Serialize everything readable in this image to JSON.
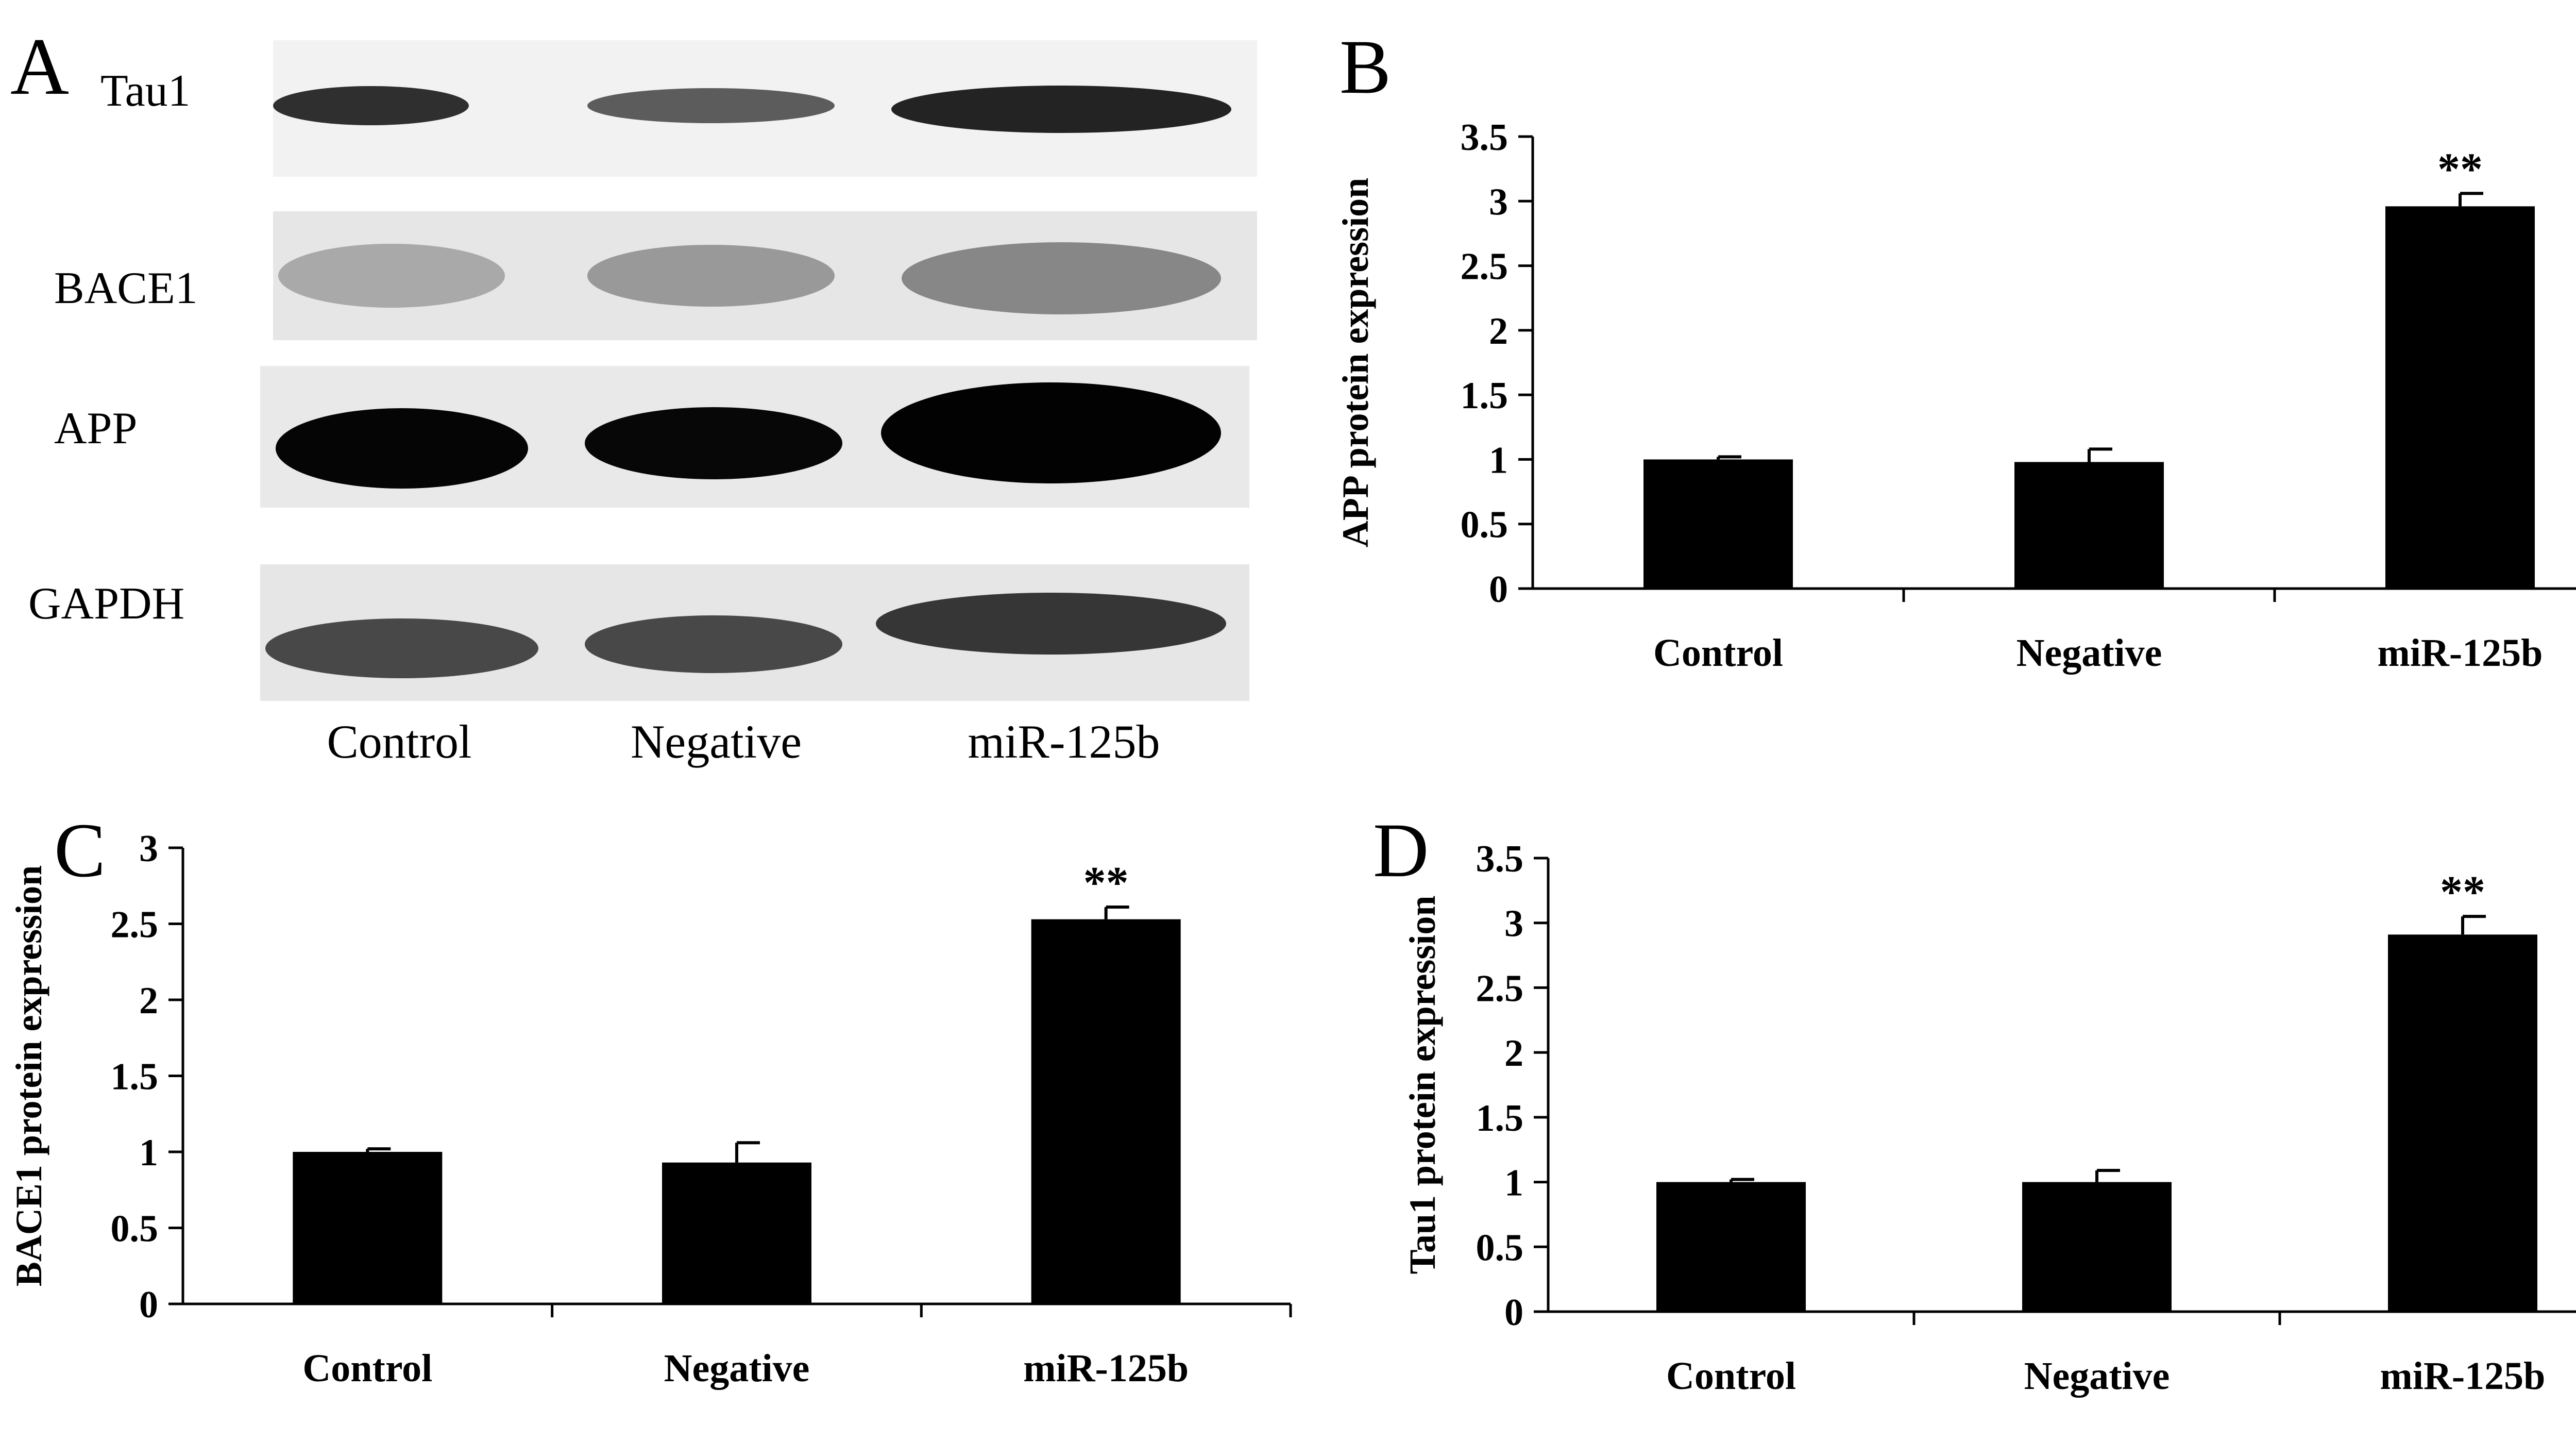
{
  "colors": {
    "bar": "#000000",
    "axis": "#000000",
    "background": "#ffffff",
    "blot_background": "#f2f2f2"
  },
  "panels": {
    "a": {
      "letter": "A"
    },
    "b": {
      "letter": "B"
    },
    "c": {
      "letter": "C"
    },
    "d": {
      "letter": "D"
    }
  },
  "blot": {
    "rows": [
      {
        "label": "Tau1"
      },
      {
        "label": "BACE1"
      },
      {
        "label": "APP"
      },
      {
        "label": "GAPDH"
      }
    ],
    "lanes": [
      "Control",
      "Negative",
      "miR-125b"
    ]
  },
  "chart_data": [
    {
      "panel": "B",
      "type": "bar",
      "title": "",
      "xlabel": "",
      "ylabel": "APP protein expression",
      "categories": [
        "Control",
        "Negative",
        "miR-125b"
      ],
      "values": [
        1.0,
        0.98,
        2.96
      ],
      "errors": [
        0.02,
        0.1,
        0.1
      ],
      "significance": [
        "",
        "",
        "**"
      ],
      "ylim": [
        0,
        3.5
      ],
      "yticks": [
        "0",
        "0.5",
        "1",
        "1.5",
        "2",
        "2.5",
        "3",
        "3.5"
      ],
      "grid": false,
      "legend": "none"
    },
    {
      "panel": "C",
      "type": "bar",
      "title": "",
      "xlabel": "",
      "ylabel": "BACE1 protein expression",
      "categories": [
        "Control",
        "Negative",
        "miR-125b"
      ],
      "values": [
        1.0,
        0.93,
        2.53
      ],
      "errors": [
        0.02,
        0.13,
        0.08
      ],
      "significance": [
        "",
        "",
        "**"
      ],
      "ylim": [
        0,
        3
      ],
      "yticks": [
        "0",
        "0.5",
        "1",
        "1.5",
        "2",
        "2.5",
        "3"
      ],
      "grid": false,
      "legend": "none"
    },
    {
      "panel": "D",
      "type": "bar",
      "title": "",
      "xlabel": "",
      "ylabel": "Tau1 protein expression",
      "categories": [
        "Control",
        "Negative",
        "miR-125b"
      ],
      "values": [
        1.0,
        1.0,
        2.91
      ],
      "errors": [
        0.02,
        0.09,
        0.14
      ],
      "significance": [
        "",
        "",
        "**"
      ],
      "ylim": [
        0,
        3.5
      ],
      "yticks": [
        "0",
        "0.5",
        "1",
        "1.5",
        "2",
        "2.5",
        "3",
        "3.5"
      ],
      "grid": false,
      "legend": "none"
    }
  ]
}
